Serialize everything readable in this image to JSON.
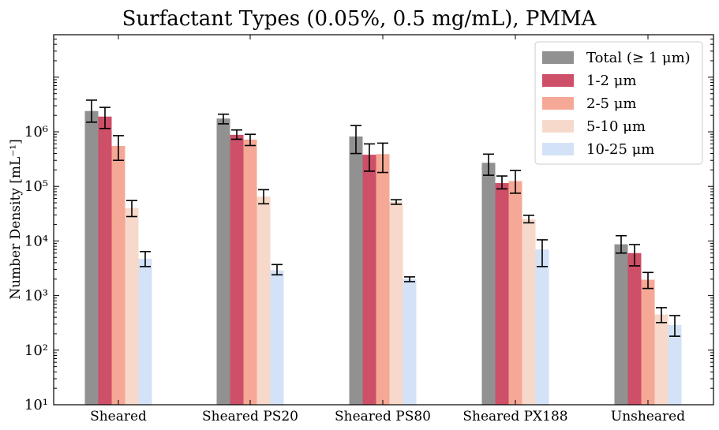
{
  "chart_data": {
    "type": "bar",
    "title": "Surfactant Types (0.05%, 0.5 mg/mL), PMMA",
    "xlabel": "",
    "ylabel": "Number Density [mL⁻¹]",
    "yscale": "log",
    "ylim": [
      10,
      60000000
    ],
    "yticks": [
      {
        "value": 10,
        "label": "10¹"
      },
      {
        "value": 100,
        "label": "10²"
      },
      {
        "value": 1000,
        "label": "10³"
      },
      {
        "value": 10000,
        "label": "10⁴"
      },
      {
        "value": 100000,
        "label": "10⁵"
      },
      {
        "value": 1000000,
        "label": "10⁶"
      }
    ],
    "categories": [
      "Sheared",
      "Sheared PS20",
      "Sheared PS80",
      "Sheared PX188",
      "Unsheared"
    ],
    "legend_position": "top-right",
    "series": [
      {
        "name": "Total (≥ 1 μm)",
        "color": "#919191",
        "values": [
          2400000,
          1750000,
          820000,
          270000,
          8700
        ],
        "err_low": [
          1500000,
          1400000,
          400000,
          160000,
          6000
        ],
        "err_high": [
          3800000,
          2100000,
          1300000,
          390000,
          12500
        ]
      },
      {
        "name": "1-2 μm",
        "color": "#cd4f68",
        "values": [
          1900000,
          880000,
          380000,
          115000,
          6000
        ],
        "err_low": [
          1150000,
          730000,
          190000,
          90000,
          3500
        ],
        "err_high": [
          2800000,
          1080000,
          600000,
          155000,
          8600
        ]
      },
      {
        "name": "2-5 μm",
        "color": "#f5a895",
        "values": [
          550000,
          720000,
          390000,
          125000,
          1950
        ],
        "err_low": [
          300000,
          560000,
          180000,
          75000,
          1350
        ],
        "err_high": [
          850000,
          900000,
          620000,
          195000,
          2650
        ]
      },
      {
        "name": "5-10 μm",
        "color": "#f6d9cb",
        "values": [
          40000,
          65000,
          52000,
          25000,
          450
        ],
        "err_low": [
          28000,
          48000,
          47000,
          21500,
          320
        ],
        "err_high": [
          55000,
          87000,
          57000,
          29500,
          600
        ]
      },
      {
        "name": "10-25 μm",
        "color": "#d3e2f7",
        "values": [
          4700,
          2900,
          2000,
          7000,
          290
        ],
        "err_low": [
          3400,
          2400,
          1800,
          3400,
          180
        ],
        "err_high": [
          6400,
          3700,
          2200,
          10500,
          430
        ]
      }
    ]
  }
}
